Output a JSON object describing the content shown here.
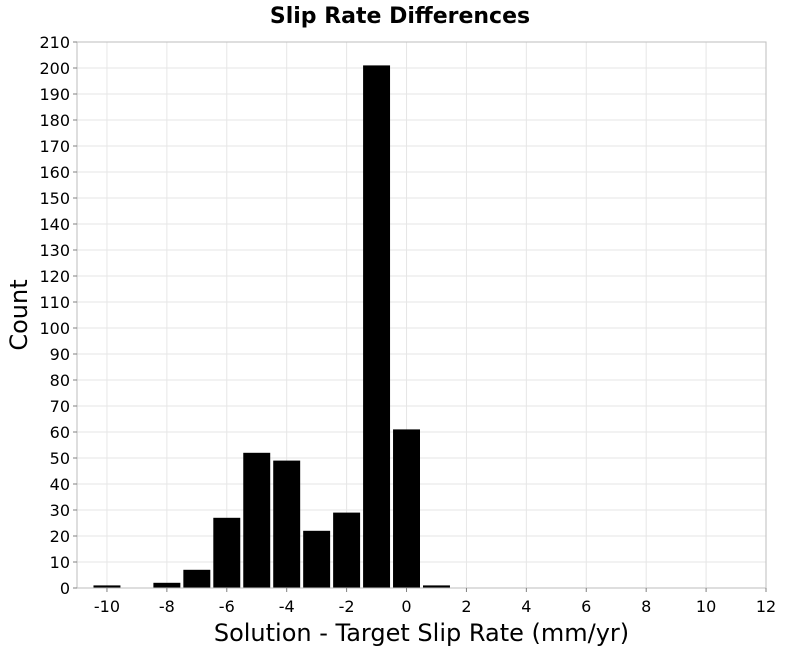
{
  "chart_data": {
    "type": "bar",
    "title": "Slip Rate Differences",
    "xlabel": "Solution - Target Slip Rate (mm/yr)",
    "ylabel": "Count",
    "xlim": [
      -11,
      12
    ],
    "ylim": [
      0,
      210
    ],
    "x_ticks": [
      -10,
      -8,
      -6,
      -4,
      -2,
      0,
      2,
      4,
      6,
      8,
      10,
      12
    ],
    "y_ticks": [
      0,
      10,
      20,
      30,
      40,
      50,
      60,
      70,
      80,
      90,
      100,
      110,
      120,
      130,
      140,
      150,
      160,
      170,
      180,
      190,
      200,
      210
    ],
    "bin_width": 1,
    "grid": true,
    "bar_color": "#000000",
    "bars": [
      {
        "x": -10,
        "value": 1
      },
      {
        "x": -8,
        "value": 2
      },
      {
        "x": -7,
        "value": 7
      },
      {
        "x": -6,
        "value": 27
      },
      {
        "x": -5,
        "value": 52
      },
      {
        "x": -4,
        "value": 49
      },
      {
        "x": -3,
        "value": 22
      },
      {
        "x": -2,
        "value": 29
      },
      {
        "x": -1,
        "value": 201
      },
      {
        "x": 0,
        "value": 61
      },
      {
        "x": 1,
        "value": 1
      }
    ]
  }
}
